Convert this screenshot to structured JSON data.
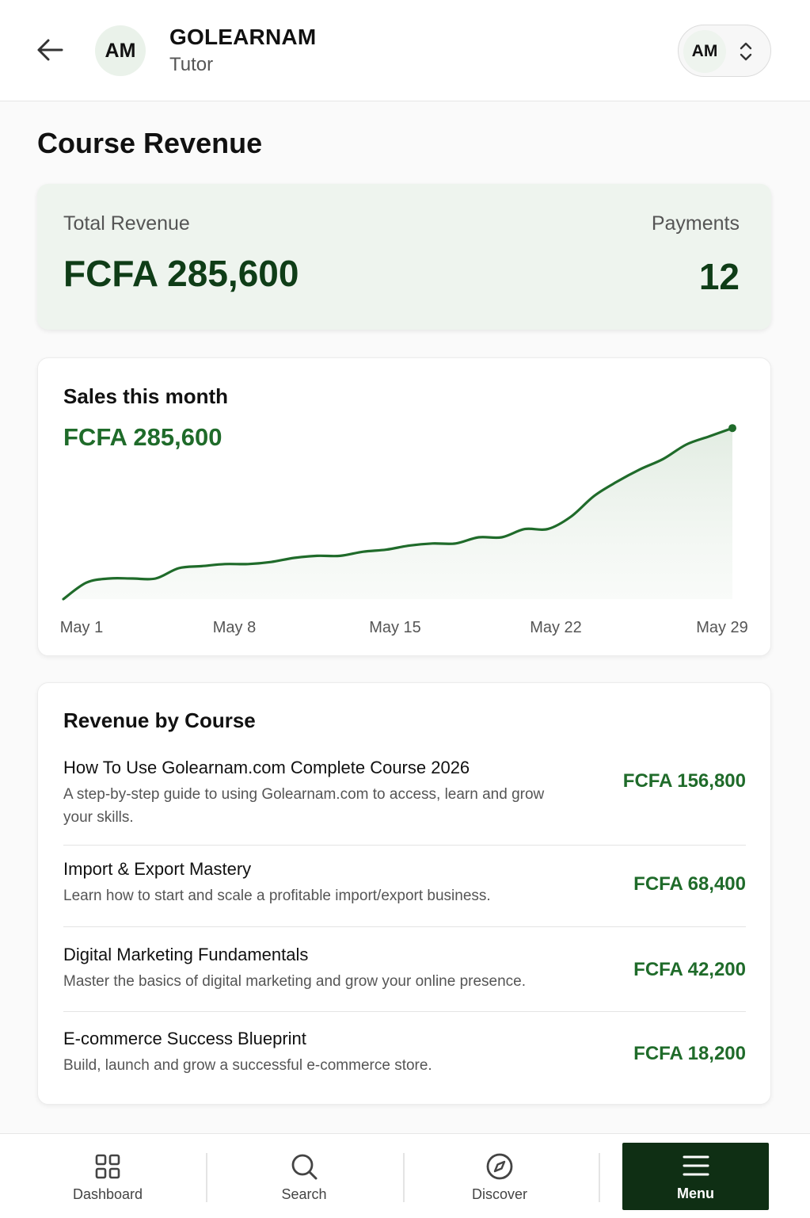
{
  "header": {
    "avatar_initials": "AM",
    "brand_name": "GOLEARNAM",
    "role": "Tutor",
    "account_initials": "AM"
  },
  "page": {
    "title": "Course Revenue"
  },
  "summary": {
    "total_label": "Total Revenue",
    "total_value": "FCFA 285,600",
    "payments_label": "Payments",
    "payments_value": "12"
  },
  "sales": {
    "title": "Sales this month",
    "value": "FCFA 285,600"
  },
  "chart_data": {
    "type": "area",
    "title": "Sales this month",
    "xlabel": "",
    "ylabel": "",
    "x_ticks": [
      "May 1",
      "May 8",
      "May 15",
      "May 22",
      "May 29"
    ],
    "grid": false,
    "legend": "none",
    "series": [
      {
        "x": [
          1,
          2,
          3,
          4,
          5,
          6,
          7,
          8,
          9,
          10,
          11,
          12,
          13,
          14,
          15,
          16,
          17,
          18,
          19,
          20,
          21,
          22,
          23,
          24,
          25,
          26,
          27,
          28,
          29,
          30
        ],
        "values": [
          0,
          8,
          10,
          10,
          10,
          15,
          16,
          17,
          17,
          18,
          20,
          21,
          21,
          23,
          24,
          26,
          27,
          27,
          30,
          30,
          34,
          34,
          40,
          50,
          57,
          63,
          68,
          75,
          79,
          83
        ],
        "color": "#1f6b2a"
      }
    ],
    "ylim": [
      0,
      90
    ],
    "xlim": [
      1,
      30
    ]
  },
  "courses": {
    "title": "Revenue by Course",
    "items": [
      {
        "name": "How To Use Golearnam.com Complete Course 2026",
        "description": "A step-by-step guide to using Golearnam.com to access, learn and grow your skills.",
        "amount": "FCFA 156,800"
      },
      {
        "name": "Import & Export Mastery",
        "description": "Learn how to start and scale a profitable import/export business.",
        "amount": "FCFA 68,400"
      },
      {
        "name": "Digital Marketing Fundamentals",
        "description": "Master the basics of digital marketing and grow your online presence.",
        "amount": "FCFA 42,200"
      },
      {
        "name": "E-commerce Success Blueprint",
        "description": "Build, launch and grow a successful e-commerce store.",
        "amount": "FCFA 18,200"
      }
    ]
  },
  "nav": {
    "items": [
      {
        "label": "Dashboard",
        "icon": "dashboard-grid-icon"
      },
      {
        "label": "Search",
        "icon": "search-icon"
      },
      {
        "label": "Discover",
        "icon": "compass-icon"
      },
      {
        "label": "Menu",
        "icon": "menu-icon",
        "active": true
      }
    ]
  },
  "colors": {
    "accent": "#1f6b2a",
    "dark_green": "#0f3d17",
    "summary_bg": "#eef4ee",
    "active_nav": "#0f2f14"
  }
}
